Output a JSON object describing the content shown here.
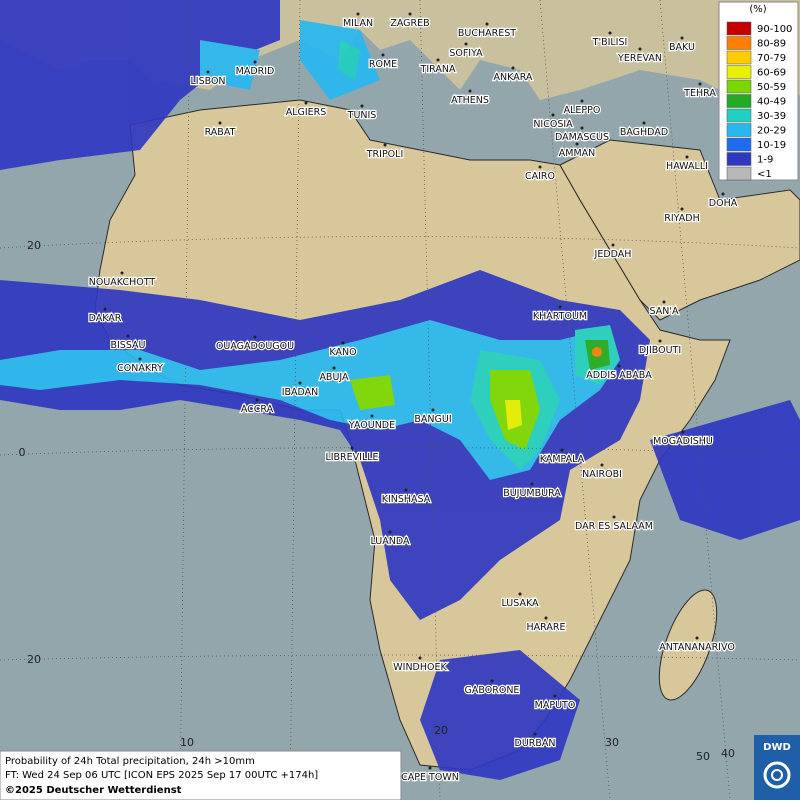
{
  "legend": {
    "title": "(%)",
    "items": [
      {
        "label": "90-100",
        "color": "#c40000"
      },
      {
        "label": "80-89",
        "color": "#ff7f00"
      },
      {
        "label": "70-79",
        "color": "#ffcc00"
      },
      {
        "label": "60-69",
        "color": "#e6f000"
      },
      {
        "label": "50-59",
        "color": "#7ad800"
      },
      {
        "label": "40-49",
        "color": "#22aa22"
      },
      {
        "label": "30-39",
        "color": "#20d0c0"
      },
      {
        "label": "20-29",
        "color": "#28b8f0"
      },
      {
        "label": "10-19",
        "color": "#1e6cf0"
      },
      {
        "label": "1-9",
        "color": "#3038c0"
      },
      {
        "label": "<1",
        "color": "#b8b8b8"
      }
    ]
  },
  "cities": [
    "MILAN",
    "ZAGREB",
    "BUCHAREST",
    "T'BILISI",
    "BAKU",
    "MADRID",
    "ROME",
    "SOFIYA",
    "YEREVAN",
    "LISBON",
    "TIRANA",
    "ANKARA",
    "TEHRA",
    "ALGIERS",
    "TUNIS",
    "ATHENS",
    "ALEPPO",
    "RABAT",
    "NICOSIA",
    "BAGHDAD",
    "TRIPOLI",
    "DAMASCUS",
    "AMMAN",
    "HAWALLI",
    "CAIRO",
    "DOHA",
    "RIYADH",
    "JEDDAH",
    "NOUAKCHOTT",
    "SAN'A",
    "DAKAR",
    "KHARTOUM",
    "BISSAU",
    "DJIBOUTI",
    "OUAGADOUGOU",
    "KANO",
    "CONAKRY",
    "ADDIS ABABA",
    "ABUJA",
    "IBADAN",
    "ACCRA",
    "BANGUI",
    "YAOUNDE",
    "MOGADISHU",
    "LIBREVILLE",
    "KAMPALA",
    "NAIROBI",
    "BUJUMBURA",
    "KINSHASA",
    "DAR ES SALAAM",
    "LUANDA",
    "LUSAKA",
    "HARARE",
    "ANTANANARIVO",
    "WINDHOEK",
    "GABORONE",
    "MAPUTO",
    "DURBAN",
    "CAPE TOWN"
  ],
  "grid_labels": [
    "20",
    "0",
    "20",
    "10",
    "20",
    "30",
    "40",
    "50"
  ],
  "footer": {
    "line1": "Probability of 24h Total precipitation, 24h >10mm",
    "line2": "FT: Wed 24 Sep 06 UTC [ICON EPS 2025 Sep 17 00UTC +174h]",
    "line3": "©2025 Deutscher Wetterdienst"
  },
  "logo": "DWD"
}
